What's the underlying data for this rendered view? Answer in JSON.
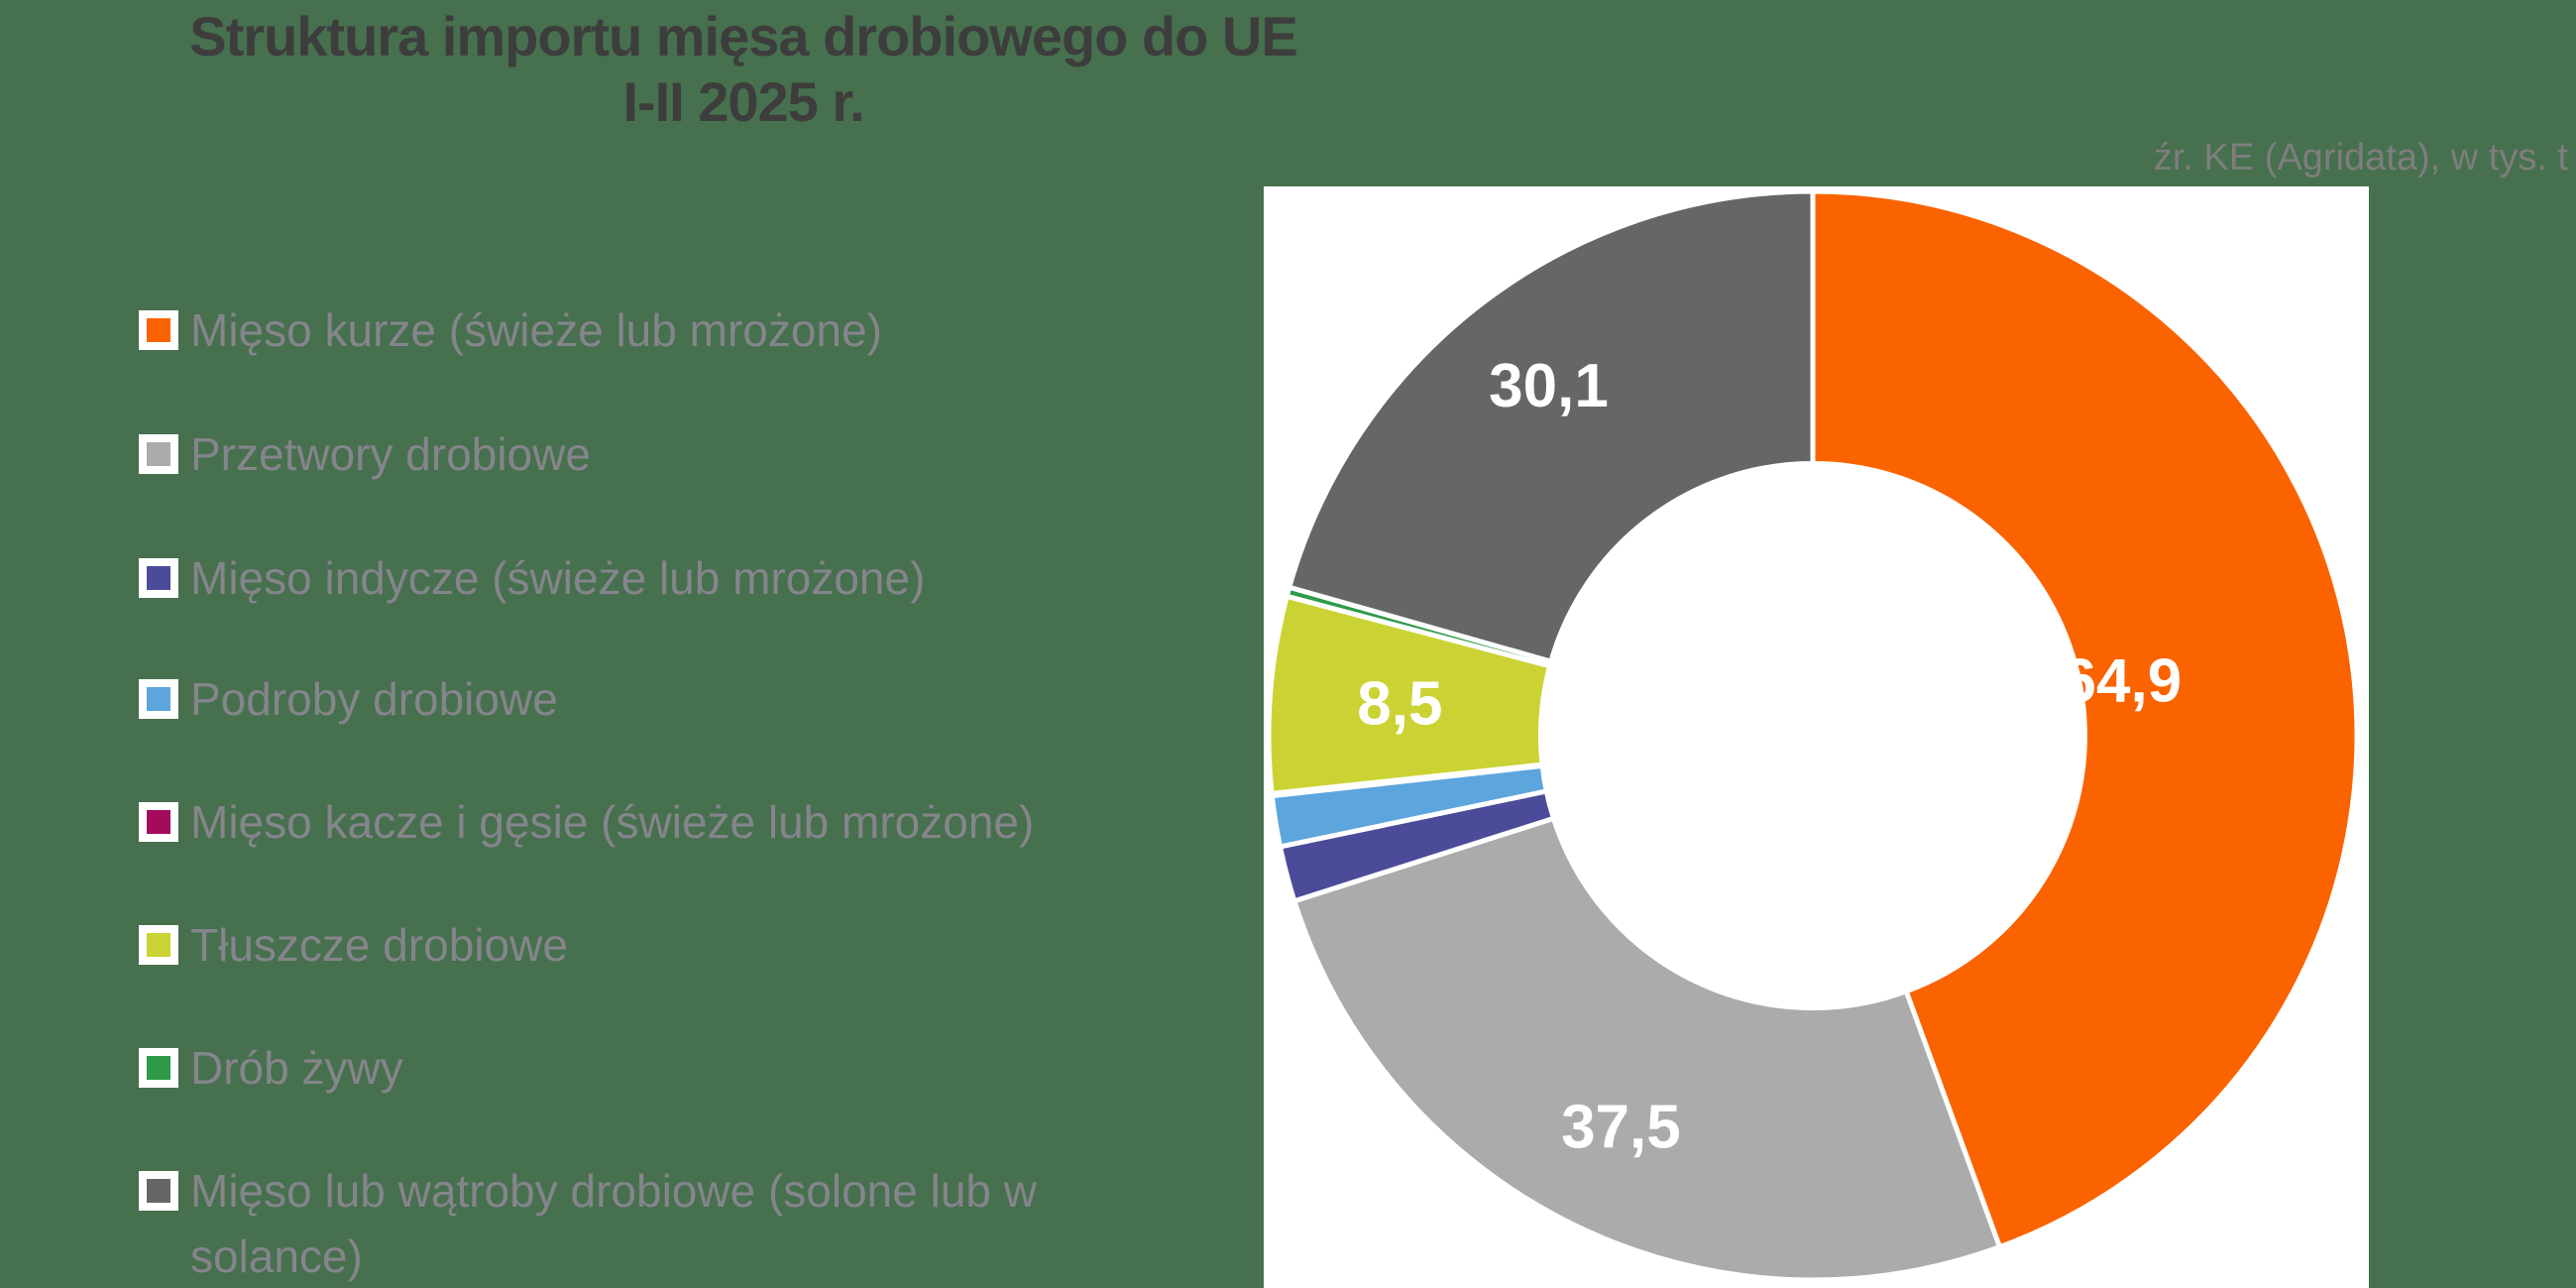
{
  "title": {
    "line1": "Struktura importu mięsa drobiowego do UE",
    "line2": "I-II 2025 r."
  },
  "source_note": "źr. KE (Agridata), w tys. t",
  "colors": {
    "background": "#47704E",
    "plot_background": "#FFFFFF",
    "title_text": "#3D3D3D",
    "legend_text": "#85858C",
    "source_text": "#7E7E7E",
    "data_label_text": "#FFFFFF"
  },
  "chart_data": {
    "type": "pie",
    "subtype": "donut",
    "title": "Struktura importu mięsa drobiowego do UE I-II 2025 r.",
    "unit": "tys. t",
    "source": "źr. KE (Agridata), w tys. t",
    "donut_hole_ratio": 0.5,
    "start_angle_deg": 0,
    "direction": "clockwise",
    "legend_position": "left",
    "grid": false,
    "series": [
      {
        "name": "Mięso kurze (świeże lub mrożone)",
        "value": 64.9,
        "label": "64,9",
        "color": "#FA6300",
        "estimated": false
      },
      {
        "name": "Przetwory drobiowe",
        "value": 37.5,
        "label": "37,5",
        "color": "#ABABAB",
        "estimated": false
      },
      {
        "name": "Mięso indycze (świeże lub mrożone)",
        "value": 2.4,
        "label": "",
        "color": "#4B4B99",
        "estimated": true
      },
      {
        "name": "Podroby drobiowe",
        "value": 2.2,
        "label": "",
        "color": "#5CA5DD",
        "estimated": true
      },
      {
        "name": "Mięso kacze i gęsie (świeże lub mrożone)",
        "value": 0.1,
        "label": "",
        "color": "#A50B5C",
        "estimated": true
      },
      {
        "name": "Tłuszcze drobiowe",
        "value": 8.5,
        "label": "8,5",
        "color": "#CBD334",
        "estimated": false
      },
      {
        "name": "Drób żywy",
        "value": 0.4,
        "label": "",
        "color": "#2F9A47",
        "estimated": true
      },
      {
        "name": "Mięso lub wątroby drobiowe (solone lub w solance)",
        "value": 30.1,
        "label": "30,1",
        "color": "#666666",
        "estimated": false
      }
    ]
  }
}
